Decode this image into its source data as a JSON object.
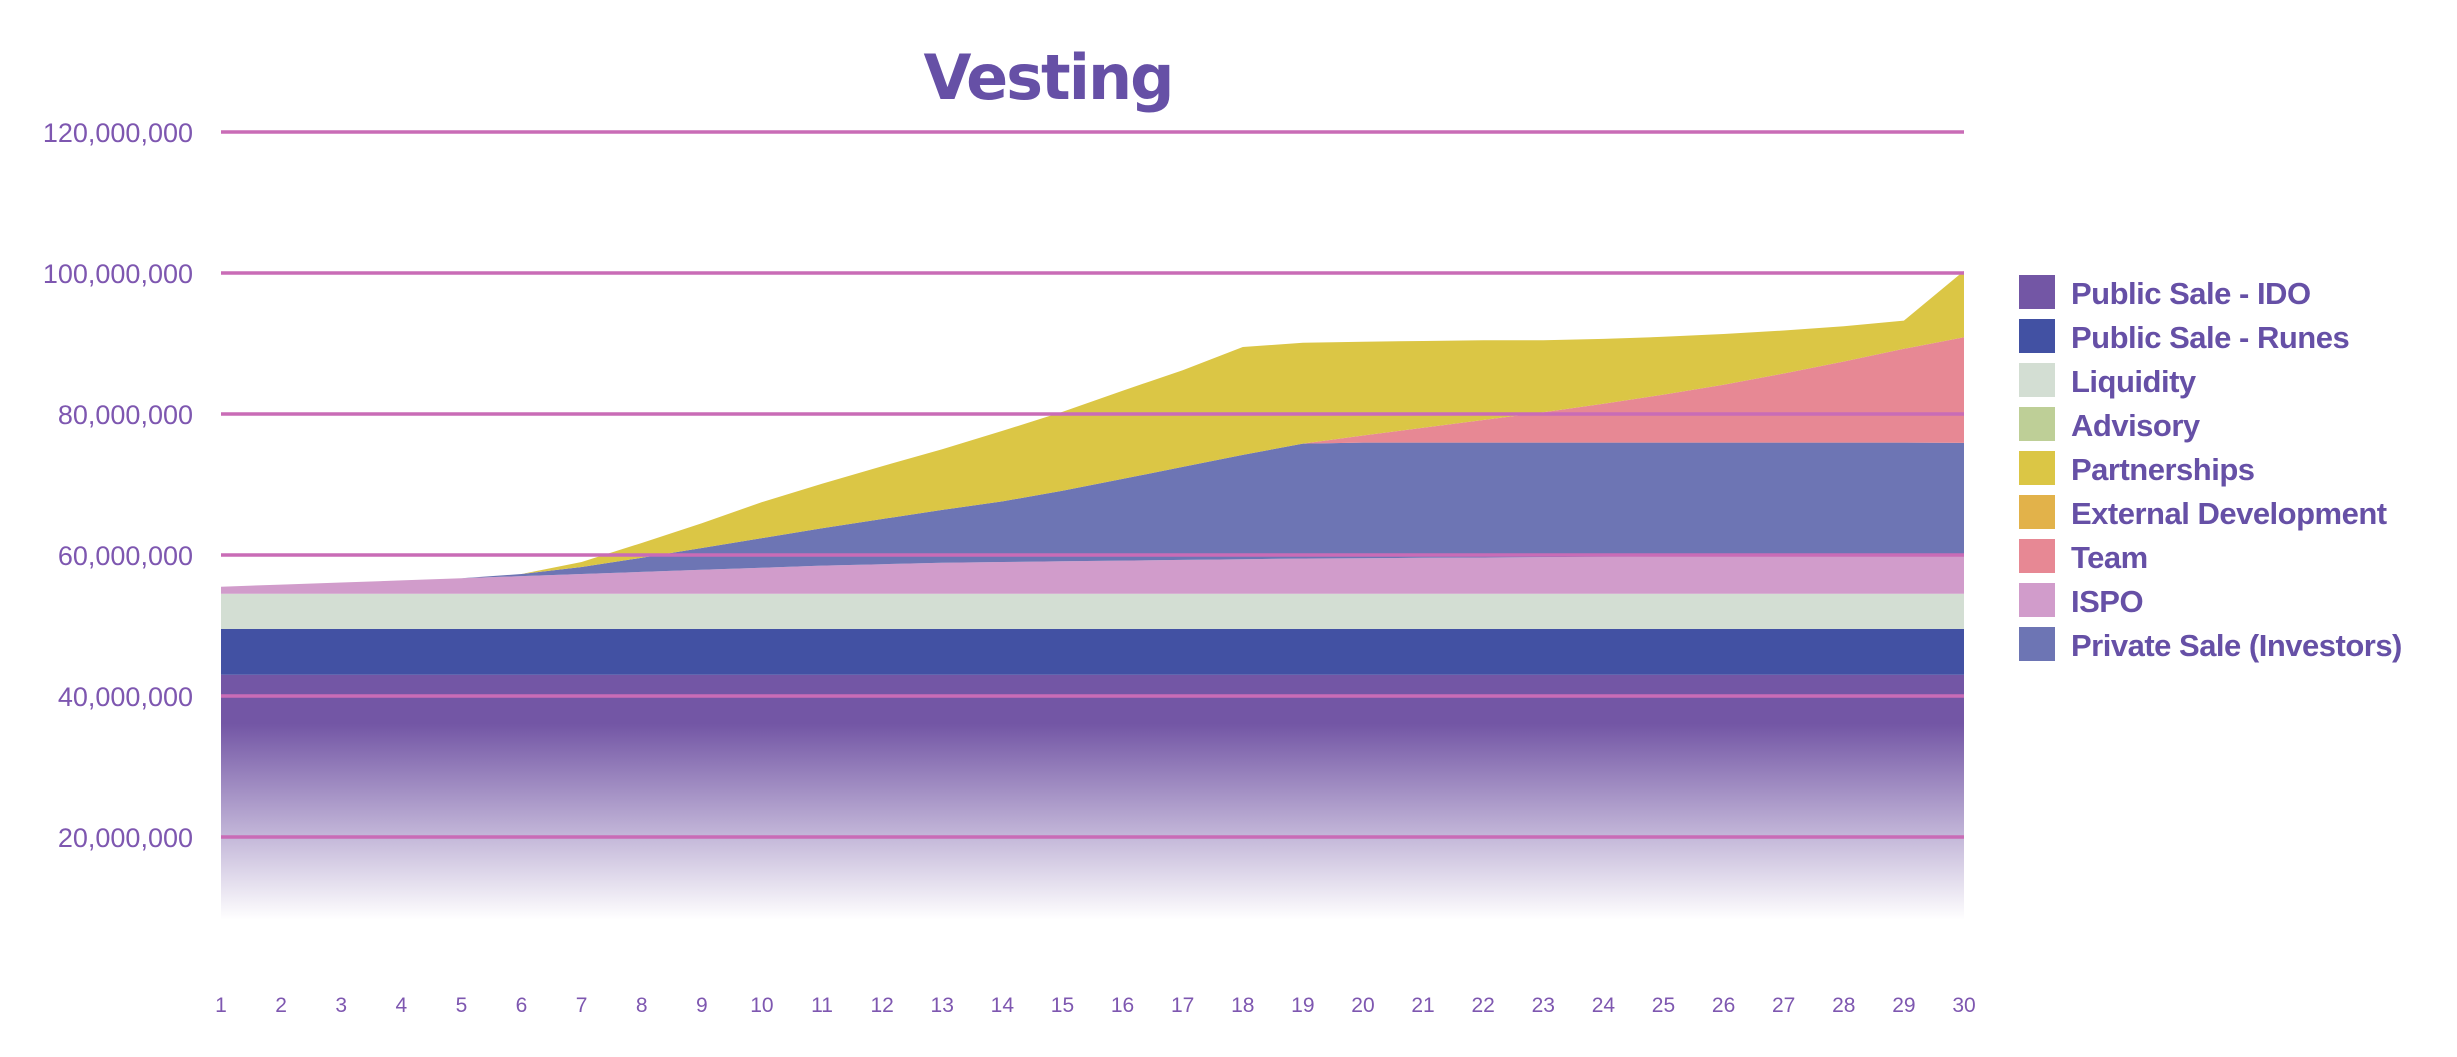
{
  "chart_data": {
    "type": "area",
    "stacked": true,
    "title": "Vesting",
    "xlabel": "",
    "ylabel": "",
    "x": [
      1,
      2,
      3,
      4,
      5,
      6,
      7,
      8,
      9,
      10,
      11,
      12,
      13,
      14,
      15,
      16,
      17,
      18,
      19,
      20,
      21,
      22,
      23,
      24,
      25,
      26,
      27,
      28,
      29,
      30
    ],
    "ylim": [
      0,
      120000000
    ],
    "yticks": [
      20000000,
      40000000,
      60000000,
      80000000,
      100000000,
      120000000
    ],
    "ytick_labels": [
      "20,000,000",
      "40,000,000",
      "60,000,000",
      "80,000,000",
      "100,000,000",
      "120,000,000"
    ],
    "grid": true,
    "legend_position": "right",
    "colors": {
      "title": "#6650A6",
      "axis_text": "#7E57B0",
      "legend_text": "#6650A6",
      "grid": "#C96CB6"
    },
    "series": [
      {
        "name": "Public Sale - IDO",
        "color": "#7356A5",
        "gradient": true,
        "values": [
          43000000,
          43000000,
          43000000,
          43000000,
          43000000,
          43000000,
          43000000,
          43000000,
          43000000,
          43000000,
          43000000,
          43000000,
          43000000,
          43000000,
          43000000,
          43000000,
          43000000,
          43000000,
          43000000,
          43000000,
          43000000,
          43000000,
          43000000,
          43000000,
          43000000,
          43000000,
          43000000,
          43000000,
          43000000,
          43000000
        ]
      },
      {
        "name": "Public Sale - Runes",
        "color": "#4251A3",
        "values": [
          6500000,
          6500000,
          6500000,
          6500000,
          6500000,
          6500000,
          6500000,
          6500000,
          6500000,
          6500000,
          6500000,
          6500000,
          6500000,
          6500000,
          6500000,
          6500000,
          6500000,
          6500000,
          6500000,
          6500000,
          6500000,
          6500000,
          6500000,
          6500000,
          6500000,
          6500000,
          6500000,
          6500000,
          6500000,
          6500000
        ]
      },
      {
        "name": "Liquidity",
        "color": "#D3DED3",
        "values": [
          5000000,
          5000000,
          5000000,
          5000000,
          5000000,
          5000000,
          5000000,
          5000000,
          5000000,
          5000000,
          5000000,
          5000000,
          5000000,
          5000000,
          5000000,
          5000000,
          5000000,
          5000000,
          5000000,
          5000000,
          5000000,
          5000000,
          5000000,
          5000000,
          5000000,
          5000000,
          5000000,
          5000000,
          5000000,
          5000000
        ]
      },
      {
        "name": "Advisory",
        "color": "#BECF97",
        "values": [
          0,
          0,
          0,
          0,
          0,
          0,
          0,
          0,
          0,
          0,
          0,
          0,
          0,
          0,
          0,
          0,
          0,
          0,
          0,
          0,
          0,
          0,
          0,
          0,
          0,
          0,
          0,
          0,
          0,
          0
        ]
      },
      {
        "name": "ISPO",
        "color": "#D19CCB",
        "values": [
          1000000,
          1300000,
          1600000,
          1900000,
          2200000,
          2500000,
          2800000,
          3100000,
          3400000,
          3700000,
          4000000,
          4200000,
          4400000,
          4500000,
          4600000,
          4700000,
          4800000,
          4900000,
          5000000,
          5050000,
          5100000,
          5150000,
          5200000,
          5250000,
          5300000,
          5350000,
          5400000,
          5450000,
          5500000,
          5500000
        ]
      },
      {
        "name": "Private Sale (Investors)",
        "color": "#6D75B4",
        "values": [
          0,
          0,
          0,
          0,
          0,
          300000,
          1000000,
          2000000,
          3100000,
          4200000,
          5300000,
          6400000,
          7500000,
          8600000,
          10000000,
          11600000,
          13200000,
          14800000,
          16300000,
          16400000,
          16350000,
          16300000,
          16250000,
          16200000,
          16150000,
          16100000,
          16050000,
          16000000,
          15950000,
          15900000
        ]
      },
      {
        "name": "Team",
        "color": "#E78894",
        "values": [
          0,
          0,
          0,
          0,
          0,
          0,
          0,
          0,
          0,
          0,
          0,
          0,
          0,
          0,
          0,
          0,
          0,
          0,
          0,
          1000000,
          2100000,
          3200000,
          4300000,
          5500000,
          6800000,
          8200000,
          9800000,
          11500000,
          13300000,
          15000000
        ]
      },
      {
        "name": "External Development",
        "color": "#E2B24A",
        "values": [
          0,
          0,
          0,
          0,
          0,
          0,
          0,
          0,
          0,
          0,
          0,
          0,
          0,
          0,
          0,
          0,
          0,
          0,
          0,
          0,
          0,
          0,
          0,
          0,
          0,
          0,
          0,
          0,
          0,
          0
        ]
      },
      {
        "name": "Partnerships",
        "color": "#DBC645",
        "values": [
          0,
          0,
          0,
          0,
          0,
          0,
          700000,
          2100000,
          3500000,
          5100000,
          6300000,
          7500000,
          8600000,
          10000000,
          11200000,
          12500000,
          13700000,
          15300000,
          14300000,
          13300000,
          12300000,
          11300000,
          10200000,
          9200000,
          8200000,
          7200000,
          6100000,
          5000000,
          4000000,
          9400000
        ]
      }
    ],
    "draw_order": [
      "Public Sale - IDO",
      "Public Sale - Runes",
      "Liquidity",
      "Advisory",
      "ISPO",
      "Private Sale (Investors)",
      "Team",
      "External Development",
      "Partnerships"
    ],
    "legend": [
      {
        "label": "Public Sale - IDO",
        "color": "#7356A5"
      },
      {
        "label": "Public Sale - Runes",
        "color": "#4251A3"
      },
      {
        "label": "Liquidity",
        "color": "#D3DED3"
      },
      {
        "label": "Advisory",
        "color": "#BECF97"
      },
      {
        "label": "Partnerships",
        "color": "#DBC645"
      },
      {
        "label": "External Development",
        "color": "#E2B24A"
      },
      {
        "label": "Team",
        "color": "#E78894"
      },
      {
        "label": "ISPO",
        "color": "#D19CCB"
      },
      {
        "label": "Private Sale (Investors)",
        "color": "#6D75B4"
      }
    ]
  }
}
